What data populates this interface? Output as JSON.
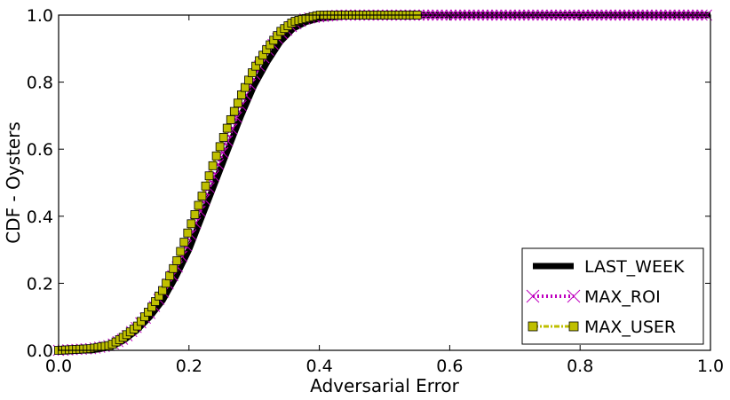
{
  "chart_data": {
    "type": "line",
    "title": "",
    "xlabel": "Adversarial Error",
    "ylabel": "CDF - Oysters",
    "xlim": [
      0.0,
      1.0
    ],
    "ylim": [
      0.0,
      1.0
    ],
    "x_ticks": [
      0.0,
      0.2,
      0.4,
      0.6,
      0.8,
      1.0
    ],
    "y_ticks": [
      0.0,
      0.2,
      0.4,
      0.6,
      0.8,
      1.0
    ],
    "x_tick_labels": [
      "0.0",
      "0.2",
      "0.4",
      "0.6",
      "0.8",
      "1.0"
    ],
    "y_tick_labels": [
      "0.0",
      "0.2",
      "0.4",
      "0.6",
      "0.8",
      "1.0"
    ],
    "grid": false,
    "legend_position": "bottom-right",
    "series": [
      {
        "name": "LAST_WEEK",
        "color": "#000000",
        "style": "solid-thick",
        "marker": "none",
        "x": [
          0.0,
          0.05,
          0.08,
          0.1,
          0.12,
          0.14,
          0.16,
          0.18,
          0.2,
          0.22,
          0.24,
          0.26,
          0.28,
          0.3,
          0.32,
          0.34,
          0.36,
          0.38,
          0.4,
          0.43,
          0.46,
          0.5,
          1.0
        ],
        "y": [
          0.0,
          0.0,
          0.01,
          0.03,
          0.06,
          0.1,
          0.15,
          0.22,
          0.3,
          0.4,
          0.5,
          0.6,
          0.7,
          0.79,
          0.86,
          0.92,
          0.96,
          0.98,
          0.99,
          0.995,
          1.0,
          1.0,
          1.0
        ]
      },
      {
        "name": "MAX_ROI",
        "color": "#bf00bf",
        "style": "dotted-thick",
        "marker": "x",
        "x": [
          0.0,
          0.05,
          0.08,
          0.1,
          0.12,
          0.14,
          0.16,
          0.18,
          0.2,
          0.22,
          0.24,
          0.26,
          0.28,
          0.3,
          0.32,
          0.34,
          0.36,
          0.38,
          0.4,
          0.43,
          0.46,
          0.5,
          1.0
        ],
        "y": [
          0.0,
          0.005,
          0.015,
          0.035,
          0.07,
          0.11,
          0.17,
          0.24,
          0.33,
          0.43,
          0.53,
          0.63,
          0.73,
          0.82,
          0.89,
          0.94,
          0.97,
          0.99,
          0.995,
          1.0,
          1.0,
          1.0,
          1.0
        ]
      },
      {
        "name": "MAX_USER",
        "color": "#bfbf00",
        "style": "dash-dot-thick",
        "marker": "square",
        "x": [
          0.0,
          0.05,
          0.08,
          0.1,
          0.12,
          0.14,
          0.16,
          0.18,
          0.2,
          0.22,
          0.24,
          0.26,
          0.28,
          0.3,
          0.32,
          0.34,
          0.36,
          0.38,
          0.4,
          0.43,
          0.46,
          0.5,
          0.55
        ],
        "y": [
          0.0,
          0.005,
          0.015,
          0.04,
          0.07,
          0.12,
          0.18,
          0.26,
          0.36,
          0.46,
          0.57,
          0.67,
          0.76,
          0.84,
          0.9,
          0.95,
          0.98,
          0.99,
          1.0,
          1.0,
          1.0,
          1.0,
          1.0
        ]
      }
    ]
  }
}
